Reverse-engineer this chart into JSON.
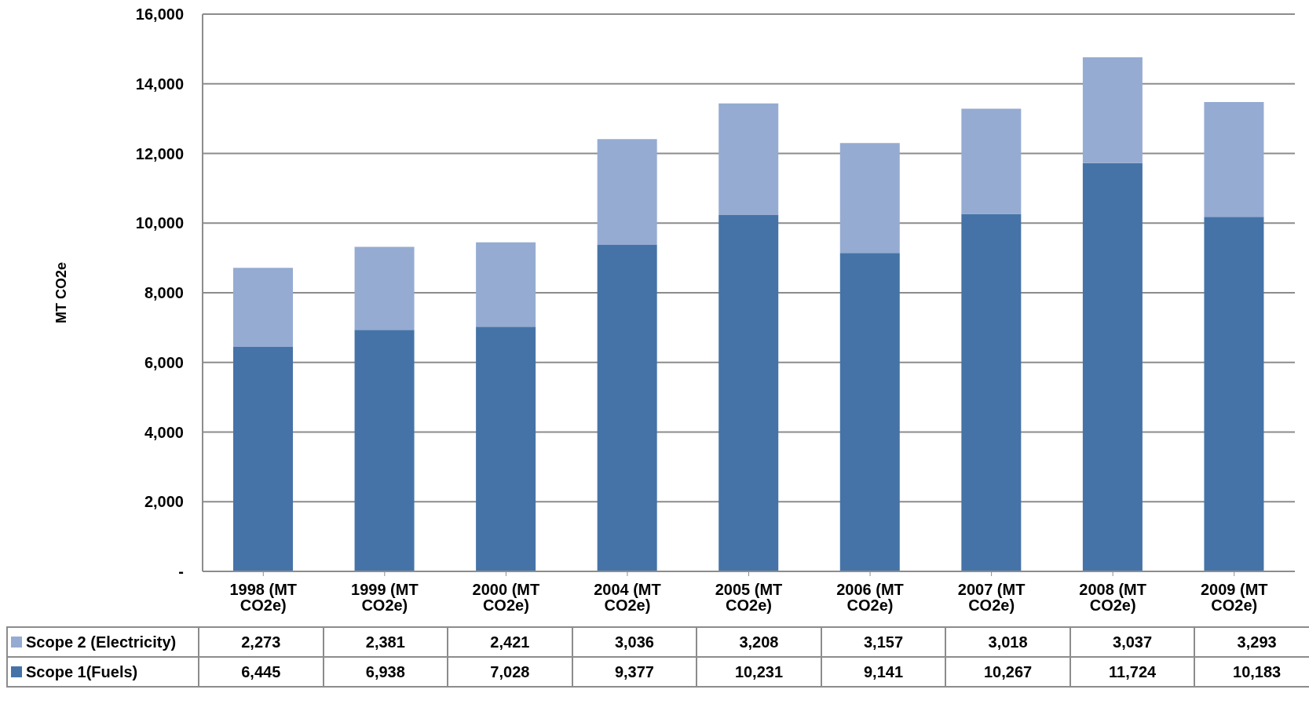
{
  "chart_data": {
    "type": "bar",
    "stacked": true,
    "ylabel": "MT CO2e",
    "categories": [
      "1998 (MT CO2e)",
      "1999 (MT CO2e)",
      "2000 (MT CO2e)",
      "2004 (MT CO2e)",
      "2005 (MT CO2e)",
      "2006 (MT CO2e)",
      "2007 (MT CO2e)",
      "2008 (MT CO2e)",
      "2009 (MT CO2e)"
    ],
    "series": [
      {
        "name": "Scope 1(Fuels)",
        "color": "#4573a7",
        "values": [
          6445,
          6938,
          7028,
          9377,
          10231,
          9141,
          10267,
          11724,
          10183
        ],
        "value_labels": [
          "6,445",
          "6,938",
          "7,028",
          "9,377",
          "10,231",
          "9,141",
          "10,267",
          "11,724",
          "10,183"
        ]
      },
      {
        "name": "Scope 2 (Electricity)",
        "color": "#95abd2",
        "values": [
          2273,
          2381,
          2421,
          3036,
          3208,
          3157,
          3018,
          3037,
          3293
        ],
        "value_labels": [
          "2,273",
          "2,381",
          "2,421",
          "3,036",
          "3,208",
          "3,157",
          "3,018",
          "3,037",
          "3,293"
        ]
      }
    ],
    "ylim": [
      0,
      16000
    ],
    "yticks": [
      {
        "value": 0,
        "label": "-"
      },
      {
        "value": 2000,
        "label": "2,000"
      },
      {
        "value": 4000,
        "label": "4,000"
      },
      {
        "value": 6000,
        "label": "6,000"
      },
      {
        "value": 8000,
        "label": "8,000"
      },
      {
        "value": 10000,
        "label": "10,000"
      },
      {
        "value": 12000,
        "label": "12,000"
      },
      {
        "value": 14000,
        "label": "14,000"
      },
      {
        "value": 16000,
        "label": "16,000"
      }
    ],
    "grid": "y",
    "legend": "bottom"
  }
}
